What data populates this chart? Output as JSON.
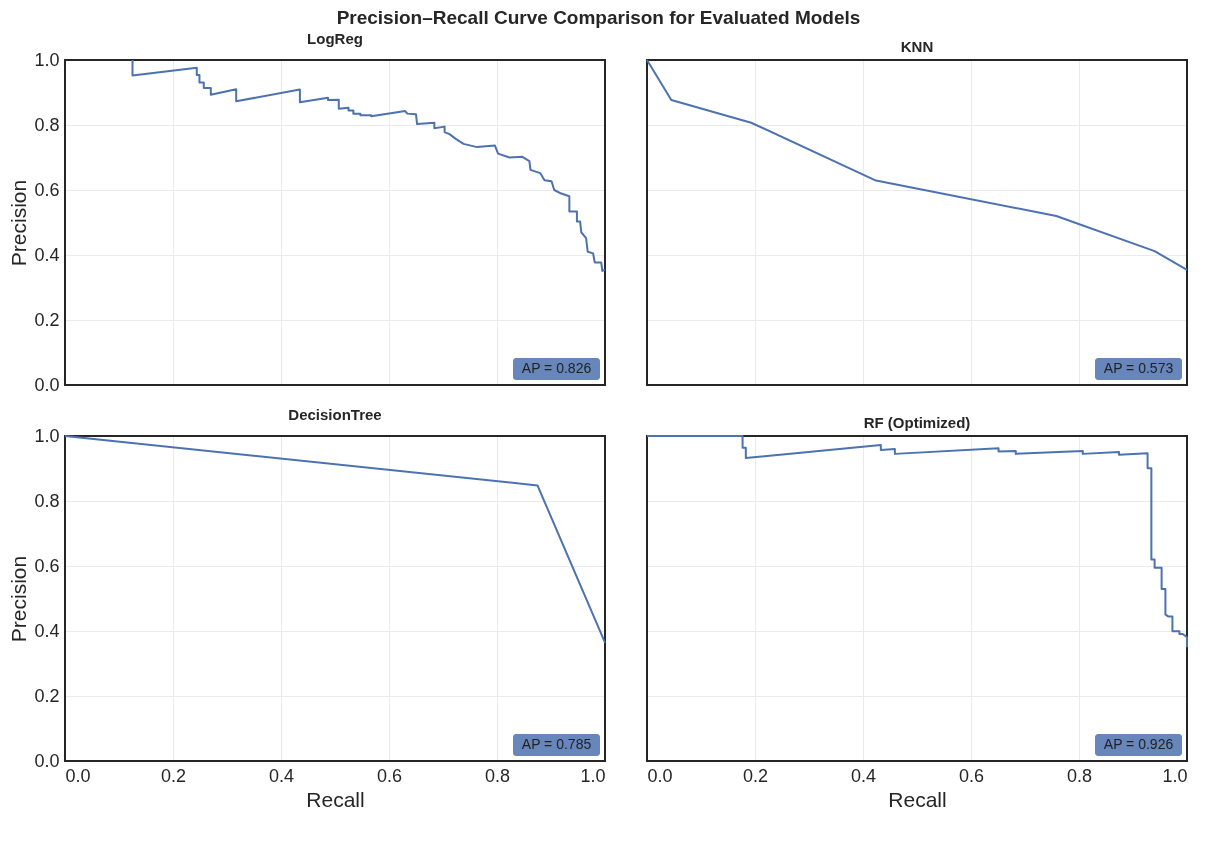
{
  "chart_data": [
    {
      "type": "line",
      "title": "LogReg",
      "ylabel": "Precision",
      "tick_labels": "y",
      "grid": true,
      "line_style": "solid",
      "xlim": [
        0,
        1
      ],
      "ylim": [
        0,
        1
      ],
      "xticks": [
        {
          "value": 0,
          "label": null
        },
        {
          "value": 0.2,
          "label": null
        },
        {
          "value": 0.4,
          "label": null
        },
        {
          "value": 0.6,
          "label": null
        },
        {
          "value": 0.8,
          "label": null
        },
        {
          "value": 1,
          "label": null
        }
      ],
      "yticks": [
        {
          "value": 0,
          "label": "0.0"
        },
        {
          "value": 0.2,
          "label": "0.2"
        },
        {
          "value": 0.4,
          "label": "0.4"
        },
        {
          "value": 0.6,
          "label": "0.6"
        },
        {
          "value": 0.8,
          "label": "0.8"
        },
        {
          "value": 1,
          "label": "1.0"
        }
      ],
      "annotations": [
        "Precision–Recall Curve Comparison for Evaluated Models",
        "AP = 0.826"
      ],
      "series": [
        {
          "color": "#4c72b0",
          "x": [
            0.125,
            0.125,
            0.244,
            0.244,
            0.249,
            0.249,
            0.257,
            0.257,
            0.27,
            0.27,
            0.317,
            0.317,
            0.435,
            0.435,
            0.487,
            0.487,
            0.507,
            0.507,
            0.525,
            0.525,
            0.534,
            0.534,
            0.547,
            0.547,
            0.567,
            0.567,
            0.63,
            0.634,
            0.65,
            0.652,
            0.684,
            0.684,
            0.703,
            0.703,
            0.712,
            0.723,
            0.738,
            0.763,
            0.796,
            0.802,
            0.823,
            0.847,
            0.86,
            0.862,
            0.88,
            0.888,
            0.901,
            0.906,
            0.919,
            0.934,
            0.934,
            0.948,
            0.948,
            0.954,
            0.956,
            0.965,
            0.968,
            0.978,
            0.981,
            0.993,
            0.995,
            1.0
          ],
          "values": [
            1.0,
            0.952,
            0.976,
            0.954,
            0.954,
            0.931,
            0.931,
            0.914,
            0.914,
            0.893,
            0.91,
            0.873,
            0.909,
            0.87,
            0.884,
            0.877,
            0.878,
            0.85,
            0.853,
            0.845,
            0.845,
            0.835,
            0.835,
            0.83,
            0.83,
            0.827,
            0.843,
            0.835,
            0.833,
            0.803,
            0.807,
            0.79,
            0.795,
            0.778,
            0.772,
            0.758,
            0.742,
            0.732,
            0.737,
            0.712,
            0.7,
            0.702,
            0.689,
            0.662,
            0.652,
            0.63,
            0.627,
            0.6,
            0.589,
            0.581,
            0.534,
            0.534,
            0.503,
            0.503,
            0.47,
            0.452,
            0.41,
            0.405,
            0.377,
            0.377,
            0.351,
            0.355
          ]
        }
      ]
    },
    {
      "type": "line",
      "title": "KNN",
      "tick_labels": false,
      "grid": true,
      "line_style": "solid",
      "xlim": [
        0,
        1
      ],
      "ylim": [
        0,
        1
      ],
      "xticks": [
        {
          "value": 0,
          "label": null
        },
        {
          "value": 0.2,
          "label": null
        },
        {
          "value": 0.4,
          "label": null
        },
        {
          "value": 0.6,
          "label": null
        },
        {
          "value": 0.8,
          "label": null
        },
        {
          "value": 1,
          "label": null
        }
      ],
      "yticks": [
        {
          "value": 0,
          "label": null
        },
        {
          "value": 0.2,
          "label": null
        },
        {
          "value": 0.4,
          "label": null
        },
        {
          "value": 0.6,
          "label": null
        },
        {
          "value": 0.8,
          "label": null
        },
        {
          "value": 1,
          "label": null
        }
      ],
      "annotations": [
        "AP = 0.573"
      ],
      "series": [
        {
          "color": "#4c72b0",
          "x": [
            0,
            0.045,
            0.193,
            0.424,
            0.758,
            0.94,
            1.0
          ],
          "values": [
            1.0,
            0.877,
            0.807,
            0.629,
            0.52,
            0.412,
            0.354
          ]
        }
      ]
    },
    {
      "type": "line",
      "title": "DecisionTree",
      "xlabel": "Recall",
      "ylabel": "Precision",
      "grid": true,
      "line_style": "solid",
      "xlim": [
        0,
        1
      ],
      "ylim": [
        0,
        1
      ],
      "xticks": [
        {
          "value": 0,
          "label": "0.0"
        },
        {
          "value": 0.2,
          "label": "0.2"
        },
        {
          "value": 0.4,
          "label": "0.4"
        },
        {
          "value": 0.6,
          "label": "0.6"
        },
        {
          "value": 0.8,
          "label": "0.8"
        },
        {
          "value": 1,
          "label": "1.0"
        }
      ],
      "yticks": [
        {
          "value": 0,
          "label": "0.0"
        },
        {
          "value": 0.2,
          "label": "0.2"
        },
        {
          "value": 0.4,
          "label": "0.4"
        },
        {
          "value": 0.6,
          "label": "0.6"
        },
        {
          "value": 0.8,
          "label": "0.8"
        },
        {
          "value": 1,
          "label": "1.0"
        }
      ],
      "annotations": [
        "AP = 0.785"
      ],
      "series": [
        {
          "color": "#4c72b0",
          "x": [
            0,
            0.875,
            1.0
          ],
          "values": [
            1.0,
            0.848,
            0.364
          ]
        }
      ]
    },
    {
      "type": "line",
      "title": "RF (Optimized)",
      "xlabel": "Recall",
      "tick_labels": "x",
      "grid": true,
      "line_style": "solid",
      "xlim": [
        0,
        1
      ],
      "ylim": [
        0,
        1
      ],
      "xticks": [
        {
          "value": 0,
          "label": "0.0"
        },
        {
          "value": 0.2,
          "label": "0.2"
        },
        {
          "value": 0.4,
          "label": "0.4"
        },
        {
          "value": 0.6,
          "label": "0.6"
        },
        {
          "value": 0.8,
          "label": "0.8"
        },
        {
          "value": 1,
          "label": "1.0"
        }
      ],
      "yticks": [
        {
          "value": 0,
          "label": null
        },
        {
          "value": 0.2,
          "label": null
        },
        {
          "value": 0.4,
          "label": null
        },
        {
          "value": 0.6,
          "label": null
        },
        {
          "value": 0.8,
          "label": null
        },
        {
          "value": 1,
          "label": null
        }
      ],
      "annotations": [
        "AP = 0.926"
      ],
      "series": [
        {
          "color": "#4c72b0",
          "x": [
            0,
            0.177,
            0.177,
            0.183,
            0.183,
            0.433,
            0.433,
            0.459,
            0.459,
            0.651,
            0.651,
            0.683,
            0.683,
            0.807,
            0.807,
            0.874,
            0.874,
            0.927,
            0.927,
            0.934,
            0.934,
            0.94,
            0.94,
            0.953,
            0.953,
            0.96,
            0.96,
            0.965,
            0.973,
            0.973,
            0.986,
            0.986,
            0.992,
            1.0,
            1.0
          ],
          "values": [
            1.0,
            1.0,
            0.964,
            0.964,
            0.932,
            0.972,
            0.957,
            0.96,
            0.945,
            0.962,
            0.952,
            0.954,
            0.945,
            0.954,
            0.945,
            0.951,
            0.942,
            0.947,
            0.901,
            0.901,
            0.62,
            0.62,
            0.595,
            0.595,
            0.529,
            0.529,
            0.451,
            0.445,
            0.445,
            0.399,
            0.399,
            0.391,
            0.391,
            0.381,
            0.35
          ]
        }
      ]
    }
  ]
}
